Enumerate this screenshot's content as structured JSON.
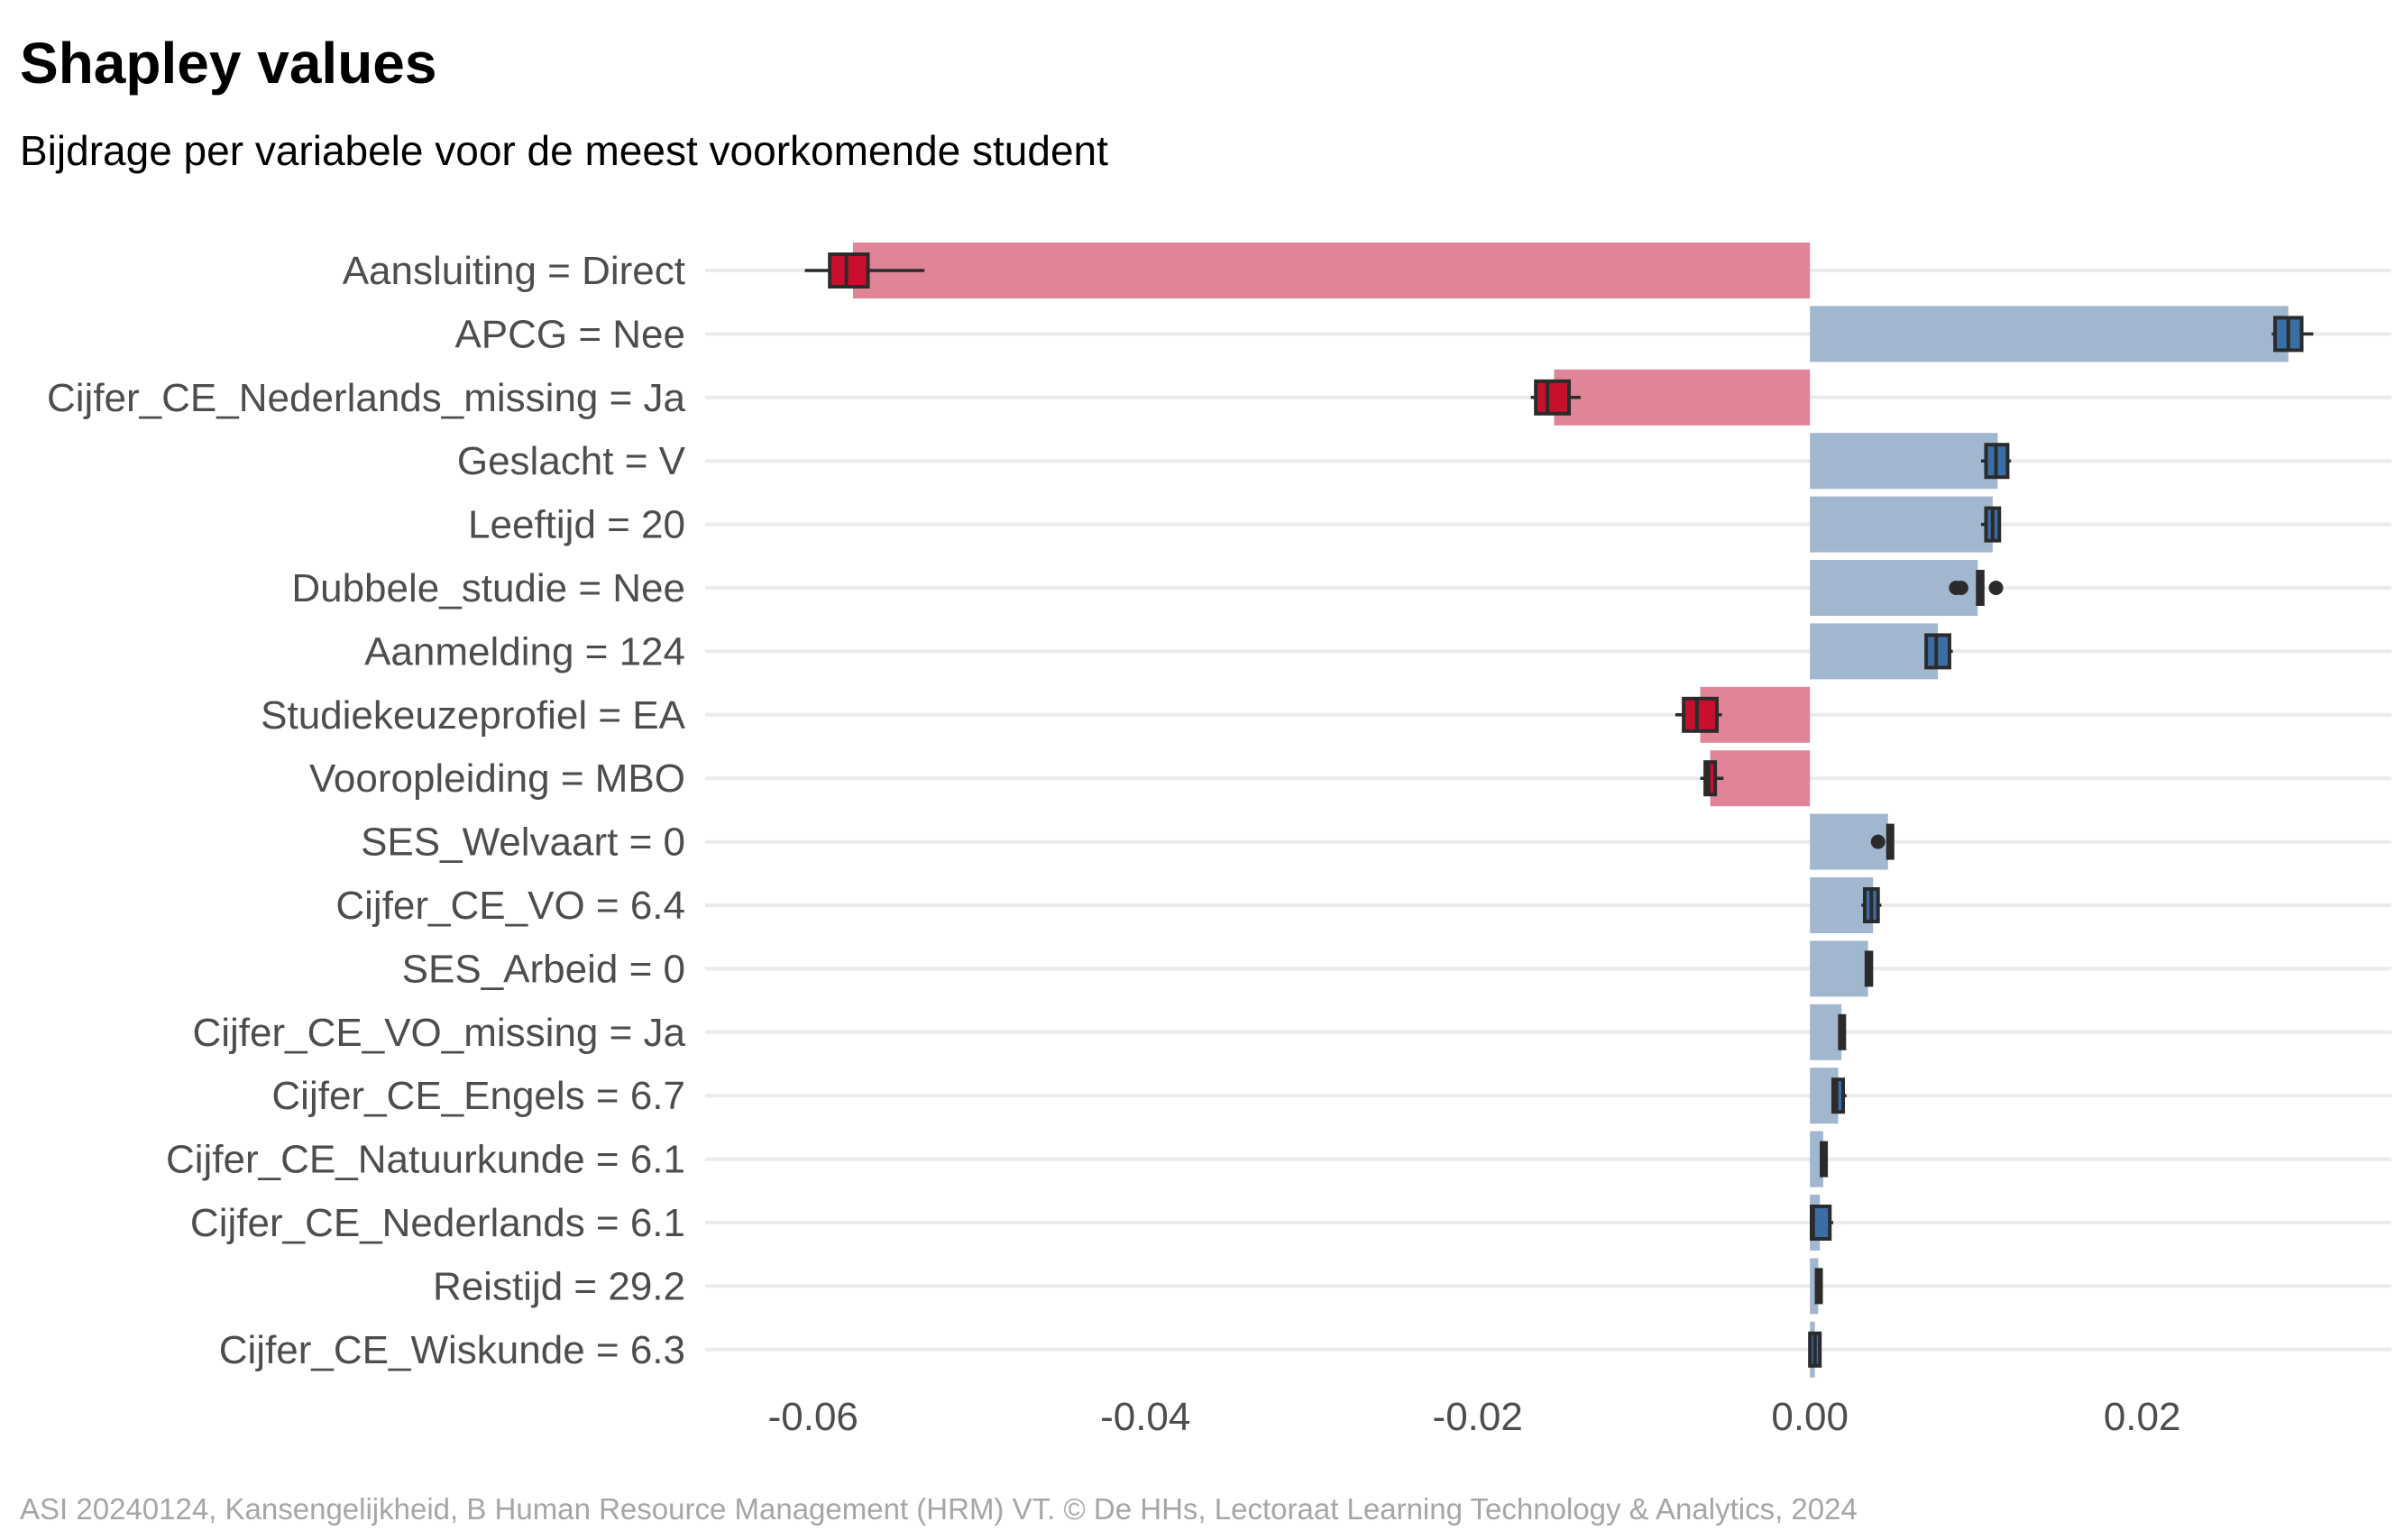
{
  "chart_data": {
    "type": "bar",
    "title": "Shapley values",
    "subtitle": "Bijdrage per variabele voor de meest voorkomende student",
    "caption": "ASI 20240124, Kansengelijkheid, B Human Resource Management (HRM) VT. © De HHs, Lectoraat Learning Technology & Analytics, 2024",
    "xlabel": "",
    "ylabel": "",
    "xlim": [
      -0.0665,
      0.035
    ],
    "x_ticks": [
      -0.06,
      -0.04,
      -0.02,
      0.0,
      0.02
    ],
    "x_tick_labels": [
      "-0.06",
      "-0.04",
      "-0.02",
      "0.00",
      "0.02"
    ],
    "grid": "horizontal",
    "legend": "none",
    "colors": {
      "negative_bar": "#e08497",
      "positive_bar": "#a1b6cf",
      "negative_box": "#c8102e",
      "positive_box": "#3a6ea5",
      "box_outline": "#2b2b2b",
      "grid": "#ebebeb"
    },
    "categories": [
      "Aansluiting = Direct",
      "APCG = Nee",
      "Cijfer_CE_Nederlands_missing = Ja",
      "Geslacht = V",
      "Leeftijd = 20",
      "Dubbele_studie = Nee",
      "Aanmelding = 124",
      "Studiekeuzeprofiel = EA",
      "Vooropleiding = MBO",
      "SES_Welvaart = 0",
      "Cijfer_CE_VO = 6.4",
      "SES_Arbeid = 0",
      "Cijfer_CE_VO_missing = Ja",
      "Cijfer_CE_Engels = 6.7",
      "Cijfer_CE_Natuurkunde = 6.1",
      "Cijfer_CE_Nederlands = 6.1",
      "Reistijd = 29.2",
      "Cijfer_CE_Wiskunde = 6.3"
    ],
    "values": [
      -0.0576,
      0.0288,
      -0.0154,
      0.0113,
      0.011,
      0.0101,
      0.0077,
      -0.0066,
      -0.006,
      0.0047,
      0.0038,
      0.0035,
      0.0019,
      0.0017,
      0.0008,
      0.0006,
      0.0005,
      0.0003
    ],
    "boxplots": [
      {
        "min": -0.0605,
        "q1": -0.059,
        "median": -0.058,
        "q3": -0.0567,
        "max": -0.0533,
        "outliers": []
      },
      {
        "min": 0.0278,
        "q1": 0.028,
        "median": 0.0288,
        "q3": 0.0296,
        "max": 0.0303,
        "outliers": []
      },
      {
        "min": -0.0168,
        "q1": -0.0165,
        "median": -0.0158,
        "q3": -0.0145,
        "max": -0.0138,
        "outliers": []
      },
      {
        "min": 0.0103,
        "q1": 0.0106,
        "median": 0.0112,
        "q3": 0.0119,
        "max": 0.0121,
        "outliers": []
      },
      {
        "min": 0.0103,
        "q1": 0.0106,
        "median": 0.011,
        "q3": 0.0114,
        "max": 0.0114,
        "outliers": []
      },
      {
        "min": 0.01,
        "q1": 0.0101,
        "median": 0.0102,
        "q3": 0.0104,
        "max": 0.0104,
        "outliers": [
          0.0088,
          0.0091,
          0.0112
        ]
      },
      {
        "min": 0.0069,
        "q1": 0.007,
        "median": 0.0076,
        "q3": 0.0084,
        "max": 0.0086,
        "outliers": []
      },
      {
        "min": -0.0081,
        "q1": -0.0076,
        "median": -0.0068,
        "q3": -0.0056,
        "max": -0.0053,
        "outliers": []
      },
      {
        "min": -0.0066,
        "q1": -0.0063,
        "median": -0.0061,
        "q3": -0.0057,
        "max": -0.0052,
        "outliers": []
      },
      {
        "min": 0.0047,
        "q1": 0.0047,
        "median": 0.0048,
        "q3": 0.0049,
        "max": 0.0049,
        "outliers": [
          0.0041
        ]
      },
      {
        "min": 0.0031,
        "q1": 0.0033,
        "median": 0.0037,
        "q3": 0.0041,
        "max": 0.0043,
        "outliers": []
      },
      {
        "min": 0.0034,
        "q1": 0.0034,
        "median": 0.0035,
        "q3": 0.0037,
        "max": 0.0037,
        "outliers": []
      },
      {
        "min": 0.0017,
        "q1": 0.0018,
        "median": 0.0019,
        "q3": 0.002,
        "max": 0.0021,
        "outliers": []
      },
      {
        "min": 0.0013,
        "q1": 0.0014,
        "median": 0.0016,
        "q3": 0.002,
        "max": 0.0022,
        "outliers": []
      },
      {
        "min": 0.0006,
        "q1": 0.0007,
        "median": 0.0008,
        "q3": 0.0009,
        "max": 0.001,
        "outliers": []
      },
      {
        "min": 0.0,
        "q1": 0.0001,
        "median": 0.0002,
        "q3": 0.0012,
        "max": 0.0014,
        "outliers": []
      },
      {
        "min": 0.0004,
        "q1": 0.0004,
        "median": 0.0005,
        "q3": 0.0006,
        "max": 0.0007,
        "outliers": []
      },
      {
        "min": 0.0,
        "q1": 0.0,
        "median": 0.0003,
        "q3": 0.0006,
        "max": 0.0006,
        "outliers": []
      }
    ]
  }
}
